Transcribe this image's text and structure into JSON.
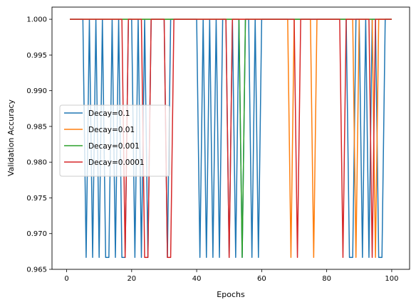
{
  "chart_data": {
    "type": "line",
    "xlabel": "Epochs",
    "ylabel": "Validation Accuracy",
    "xlim": [
      -4.5,
      105.5
    ],
    "ylim": [
      0.965,
      1.0017
    ],
    "x_ticks": [
      0,
      20,
      40,
      60,
      80,
      100
    ],
    "y_ticks": [
      0.965,
      0.97,
      0.975,
      0.98,
      0.985,
      0.99,
      0.995,
      1.0
    ],
    "x_tick_labels": [
      "0",
      "20",
      "40",
      "60",
      "80",
      "100"
    ],
    "y_tick_labels": [
      "0.965",
      "0.970",
      "0.975",
      "0.980",
      "0.985",
      "0.990",
      "0.995",
      "1.000"
    ],
    "legend_position": "center-left",
    "grid": false,
    "epochs": [
      1,
      100
    ],
    "high_value": 1.0,
    "low_value": 0.96667,
    "series": [
      {
        "name": "Decay=0.1",
        "color": "#1f77b4",
        "low_epochs": [
          6,
          8,
          10,
          12,
          13,
          15,
          17,
          18,
          21,
          23,
          25,
          31,
          41,
          43,
          45,
          47,
          50,
          52,
          54,
          57,
          59,
          87,
          88,
          91,
          93,
          96,
          97
        ]
      },
      {
        "name": "Decay=0.01",
        "color": "#ff7f0e",
        "low_epochs": [
          69,
          76,
          89,
          95
        ]
      },
      {
        "name": "Decay=0.001",
        "color": "#2ca02c",
        "low_epochs": [
          54
        ]
      },
      {
        "name": "Decay=0.0001",
        "color": "#d62728",
        "low_epochs": [
          18,
          24,
          25,
          31,
          32,
          50,
          71,
          85,
          94
        ]
      }
    ]
  }
}
